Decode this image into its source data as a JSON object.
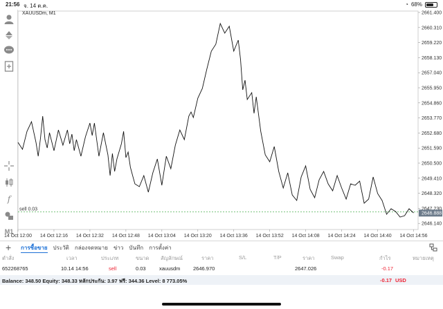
{
  "status": {
    "time": "21:56",
    "date": "จ. 14 ต.ค.",
    "battery": "68%",
    "battery_fraction": 0.68
  },
  "chart_symbol": "XAUUSDm, M1",
  "position_line_label": "sell 0.03",
  "current_price_label": "2646.888",
  "timeframe": "M1",
  "tabs": [
    "การซื้อขาย",
    "ประวัติ",
    "กล่องจดหมาย",
    "ข่าว",
    "บันทึก",
    "การตั้งค่า"
  ],
  "columns": [
    "ตำสั่ง",
    "เวลา",
    "ประเภท",
    "ขนาด",
    "สัญลักษณ์",
    "ราคา",
    "S/L",
    "T/P",
    "ราคา",
    "Swap",
    "กำไร",
    "หมายเหตุ"
  ],
  "trade": {
    "order": "652268765",
    "time": "10.14 14:56",
    "type": "sell",
    "size": "0.03",
    "symbol": "xauusdm",
    "open_price": "2646.970",
    "current_price": "2647.026",
    "profit": "-0.17"
  },
  "balance": {
    "text": "Balance: 348.50 Equity: 348.33 หลักประกัน: 3.97 ฟรี: 344.36 Level: 8 773.05%",
    "profit": "-0.17",
    "currency": "USD"
  },
  "colors": {
    "accent": "#1a6fd6",
    "loss": "#e23",
    "position_line": "#4caf50",
    "price_badge": "#6b7a8a"
  },
  "chart_data": {
    "type": "line",
    "title": "",
    "xlabel": "",
    "ylabel": "",
    "ylim": [
      2645.7,
      2661.5
    ],
    "y_ticks": [
      2661.4,
      2660.31,
      2659.22,
      2658.13,
      2657.04,
      2655.95,
      2654.86,
      2653.77,
      2652.68,
      2651.59,
      2650.5,
      2649.41,
      2648.32,
      2647.23,
      2646.14
    ],
    "x_ticks": [
      "14 Oct 12:00",
      "14 Oct 12:16",
      "14 Oct 12:32",
      "14 Oct 12:48",
      "14 Oct 13:04",
      "14 Oct 13:20",
      "14 Oct 13:36",
      "14 Oct 13:52",
      "14 Oct 14:08",
      "14 Oct 14:24",
      "14 Oct 14:40",
      "14 Oct 14:56"
    ],
    "x_minutes": [
      0,
      16,
      32,
      48,
      64,
      80,
      96,
      112,
      128,
      144,
      160,
      176
    ],
    "series": [
      {
        "x": [
          0,
          2,
          4,
          6,
          8,
          9,
          10,
          11,
          12,
          13,
          14,
          16,
          18,
          20,
          22,
          23,
          24,
          25,
          26,
          28,
          30,
          32,
          33,
          34,
          36,
          38,
          40,
          41,
          42,
          43,
          44,
          46,
          47,
          48,
          49,
          50,
          51,
          52,
          54,
          56,
          58,
          60,
          62,
          64,
          66,
          68,
          70,
          72,
          74,
          76,
          77,
          78,
          80,
          82,
          84,
          86,
          88,
          90,
          92,
          94,
          96,
          98,
          99,
          100,
          101,
          102,
          104,
          105,
          106,
          108,
          110,
          112,
          114,
          116,
          118,
          120,
          122,
          124,
          126,
          128,
          130,
          132,
          134,
          136,
          138,
          140,
          142,
          144,
          146,
          148,
          150,
          152,
          154,
          156,
          158,
          160,
          162,
          163,
          164,
          166,
          168,
          170,
          172,
          174,
          176
        ],
        "y": [
          2652.0,
          2651.5,
          2652.8,
          2653.5,
          2652.0,
          2651.0,
          2652.3,
          2653.9,
          2652.2,
          2651.6,
          2652.7,
          2651.4,
          2652.9,
          2651.8,
          2652.9,
          2651.9,
          2652.6,
          2651.4,
          2652.2,
          2651.0,
          2652.4,
          2653.4,
          2652.5,
          2653.4,
          2651.0,
          2652.7,
          2651.1,
          2649.6,
          2651.2,
          2649.9,
          2650.8,
          2651.9,
          2652.8,
          2650.9,
          2651.3,
          2650.2,
          2649.6,
          2649.0,
          2648.8,
          2649.6,
          2648.4,
          2649.8,
          2650.8,
          2648.9,
          2651.0,
          2650.1,
          2651.8,
          2652.9,
          2652.2,
          2653.9,
          2654.2,
          2653.8,
          2655.2,
          2655.9,
          2657.3,
          2658.6,
          2659.1,
          2660.6,
          2659.9,
          2660.4,
          2658.6,
          2659.4,
          2658.0,
          2655.8,
          2656.5,
          2655.1,
          2655.6,
          2654.1,
          2655.3,
          2652.8,
          2651.1,
          2650.6,
          2651.7,
          2649.9,
          2648.7,
          2649.8,
          2648.2,
          2647.8,
          2649.5,
          2650.3,
          2648.6,
          2648.0,
          2649.3,
          2649.9,
          2649.0,
          2648.5,
          2649.6,
          2648.7,
          2647.9,
          2649.0,
          2648.9,
          2649.2,
          2647.6,
          2647.9,
          2649.5,
          2648.3,
          2647.8,
          2647.3,
          2646.8,
          2647.2,
          2647.0,
          2646.6,
          2646.7,
          2647.2,
          2646.9
        ]
      }
    ]
  }
}
